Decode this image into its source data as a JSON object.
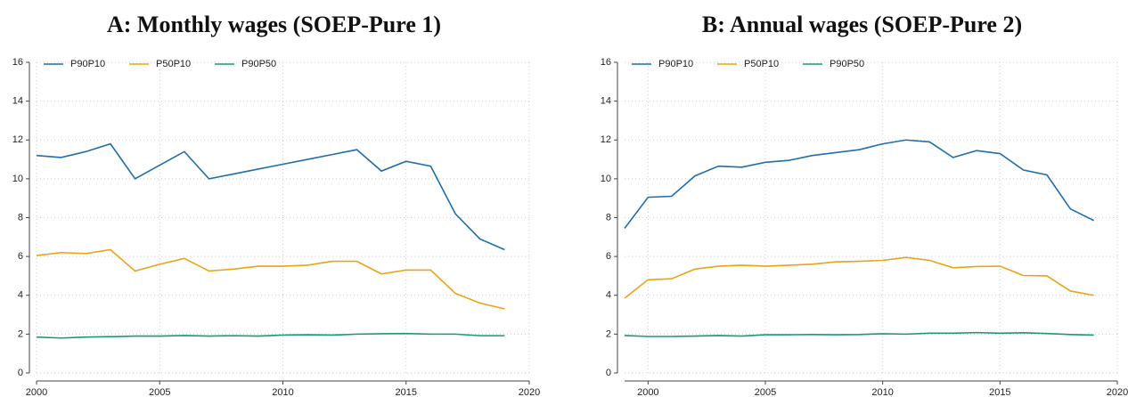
{
  "chart_data": [
    {
      "type": "line",
      "title": "A: Monthly wages (SOEP-Pure 1)",
      "x": [
        2000,
        2001,
        2002,
        2003,
        2004,
        2005,
        2006,
        2007,
        2008,
        2009,
        2010,
        2011,
        2012,
        2013,
        2014,
        2015,
        2016,
        2017,
        2018,
        2019
      ],
      "series": [
        {
          "name": "P90P10",
          "color": "#1f6fa8",
          "values": [
            11.2,
            11.1,
            11.4,
            11.8,
            10.0,
            10.7,
            11.4,
            10.0,
            10.25,
            10.5,
            10.75,
            11.0,
            11.25,
            11.5,
            10.4,
            10.9,
            10.65,
            8.2,
            6.9,
            6.35
          ]
        },
        {
          "name": "P50P10",
          "color": "#e8a317",
          "values": [
            6.05,
            6.2,
            6.15,
            6.35,
            5.25,
            5.6,
            5.9,
            5.25,
            5.35,
            5.5,
            5.5,
            5.55,
            5.75,
            5.75,
            5.1,
            5.3,
            5.3,
            4.1,
            3.6,
            3.3
          ]
        },
        {
          "name": "P90P50",
          "color": "#1a9a74",
          "values": [
            1.85,
            1.8,
            1.85,
            1.87,
            1.9,
            1.9,
            1.93,
            1.9,
            1.92,
            1.9,
            1.95,
            1.97,
            1.95,
            2.0,
            2.02,
            2.03,
            2.0,
            2.0,
            1.92,
            1.92
          ]
        }
      ],
      "xlim": [
        2000,
        2020
      ],
      "xticks": [
        2000,
        2005,
        2010,
        2015,
        2020
      ],
      "ylim": [
        0,
        16
      ],
      "yticks": [
        0,
        2,
        4,
        6,
        8,
        10,
        12,
        14,
        16
      ],
      "grid": true,
      "legend": "top-left"
    },
    {
      "type": "line",
      "title": "B: Annual wages (SOEP-Pure 2)",
      "x": [
        1999,
        2000,
        2001,
        2002,
        2003,
        2004,
        2005,
        2006,
        2007,
        2008,
        2009,
        2010,
        2011,
        2012,
        2013,
        2014,
        2015,
        2016,
        2017,
        2018,
        2019
      ],
      "series": [
        {
          "name": "P90P10",
          "color": "#1f6fa8",
          "values": [
            7.45,
            9.05,
            9.1,
            10.15,
            10.65,
            10.6,
            10.85,
            10.95,
            11.2,
            11.35,
            11.5,
            11.8,
            12.0,
            11.9,
            11.1,
            11.45,
            11.3,
            10.45,
            10.2,
            8.45,
            7.85
          ]
        },
        {
          "name": "P50P10",
          "color": "#e8a317",
          "values": [
            3.85,
            4.8,
            4.85,
            5.35,
            5.5,
            5.55,
            5.5,
            5.55,
            5.6,
            5.72,
            5.75,
            5.8,
            5.95,
            5.8,
            5.42,
            5.48,
            5.5,
            5.02,
            5.0,
            4.22,
            4.0
          ]
        },
        {
          "name": "P90P50",
          "color": "#1a9a74",
          "values": [
            1.93,
            1.88,
            1.88,
            1.9,
            1.93,
            1.9,
            1.97,
            1.97,
            1.98,
            1.97,
            1.98,
            2.02,
            2.0,
            2.05,
            2.05,
            2.08,
            2.05,
            2.07,
            2.03,
            1.98,
            1.95
          ]
        }
      ],
      "xlim": [
        1999,
        2020
      ],
      "xticks": [
        2000,
        2005,
        2010,
        2015,
        2020
      ],
      "ylim": [
        0,
        16
      ],
      "yticks": [
        0,
        2,
        4,
        6,
        8,
        10,
        12,
        14,
        16
      ],
      "grid": true,
      "legend": "top-left"
    }
  ]
}
